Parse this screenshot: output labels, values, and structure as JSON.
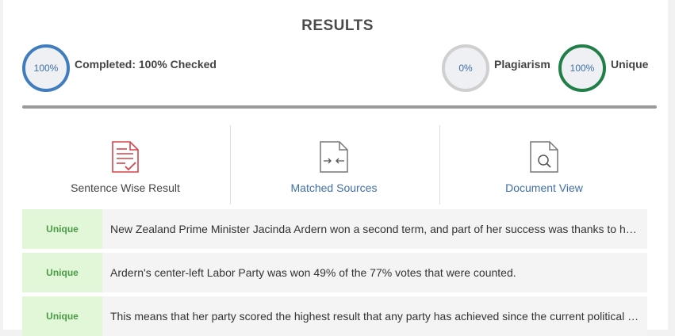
{
  "header": {
    "title": "RESULTS"
  },
  "stats": {
    "completed": {
      "percent": "100%",
      "label": "Completed: 100% Checked",
      "ring_color": "#3f7dbf"
    },
    "plagiarism": {
      "percent": "0%",
      "label": "Plagiarism",
      "ring_color": "#cfcfcf"
    },
    "unique": {
      "percent": "100%",
      "label": "Unique",
      "ring_color": "#1f7f46"
    }
  },
  "tabs": [
    {
      "label": "Sentence Wise Result",
      "icon": "document-check-icon",
      "color": "#444444"
    },
    {
      "label": "Matched Sources",
      "icon": "compare-document-icon",
      "color": "#3f6fa6"
    },
    {
      "label": "Document View",
      "icon": "document-search-icon",
      "color": "#3f6fa6"
    }
  ],
  "results": [
    {
      "status": "Unique",
      "text": "New Zealand Prime Minister Jacinda Ardern won a second term, and part of her success was thanks to her handling of the pandemic."
    },
    {
      "status": "Unique",
      "text": "Ardern's center-left Labor Party was won 49% of the 77% votes that were counted."
    },
    {
      "status": "Unique",
      "text": "This means that her party scored the highest result that any party has achieved since the current political system was introduced."
    }
  ]
}
